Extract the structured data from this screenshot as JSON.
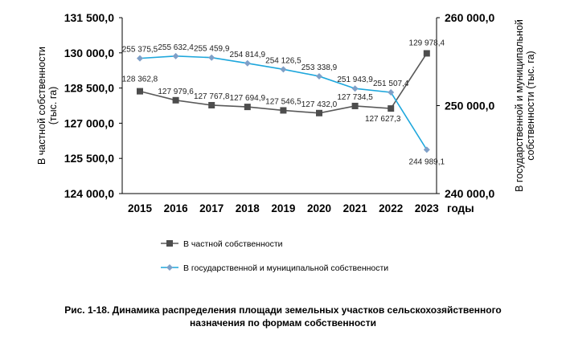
{
  "chart_data": {
    "type": "line",
    "x": [
      "2015",
      "2016",
      "2017",
      "2018",
      "2019",
      "2020",
      "2021",
      "2022",
      "2023"
    ],
    "xlabel": "годы",
    "series": [
      {
        "name": "В частной собственности",
        "axis": "left",
        "color": "#595959",
        "marker": "square",
        "values": [
          128362.8,
          127979.6,
          127767.8,
          127694.9,
          127546.5,
          127432.0,
          127734.5,
          127627.3,
          129978.4
        ],
        "labels": [
          "128 362,8",
          "127 979,6",
          "127 767,8",
          "127 694,9",
          "127 546,5",
          "127 432,0",
          "127 734,5",
          "127 627,3",
          "129 978,4"
        ]
      },
      {
        "name": "В государственной и муниципальной собственности",
        "axis": "right",
        "color": "#1ea7dc",
        "marker": "diamond",
        "values": [
          255375.5,
          255632.4,
          255459.9,
          254814.9,
          254126.5,
          253338.9,
          251943.9,
          251507.4,
          244989.1
        ],
        "labels": [
          "255 375,5",
          "255 632,4",
          "255 459,9",
          "254 814,9",
          "254 126,5",
          "253 338,9",
          "251 943,9",
          "251 507,4",
          "244 989,1"
        ]
      }
    ],
    "y_left": {
      "label_lines": [
        "В частной собственности",
        "(тыс. га)"
      ],
      "ylim": [
        124000,
        131500
      ],
      "ticks": [
        124000,
        125500,
        127000,
        128500,
        130000,
        131500
      ],
      "tick_labels": [
        "124 000,0",
        "125 500,0",
        "127 000,0",
        "128 500,0",
        "130 000,0",
        "131 500,0"
      ]
    },
    "y_right": {
      "label_lines": [
        "В государственной и муниципальной",
        "собственности (тыс. га)"
      ],
      "ylim": [
        240000,
        260000
      ],
      "ticks": [
        240000,
        250000,
        260000
      ],
      "tick_labels": [
        "240 000,0",
        "250 000,0",
        "260 000,0"
      ]
    },
    "grid": false,
    "legend": "bottom-left"
  },
  "caption": {
    "line1": "Рис. 1-18. Динамика распределения площади земельных участков сельскохозяйственного",
    "line2": "назначения по формам собственности"
  }
}
